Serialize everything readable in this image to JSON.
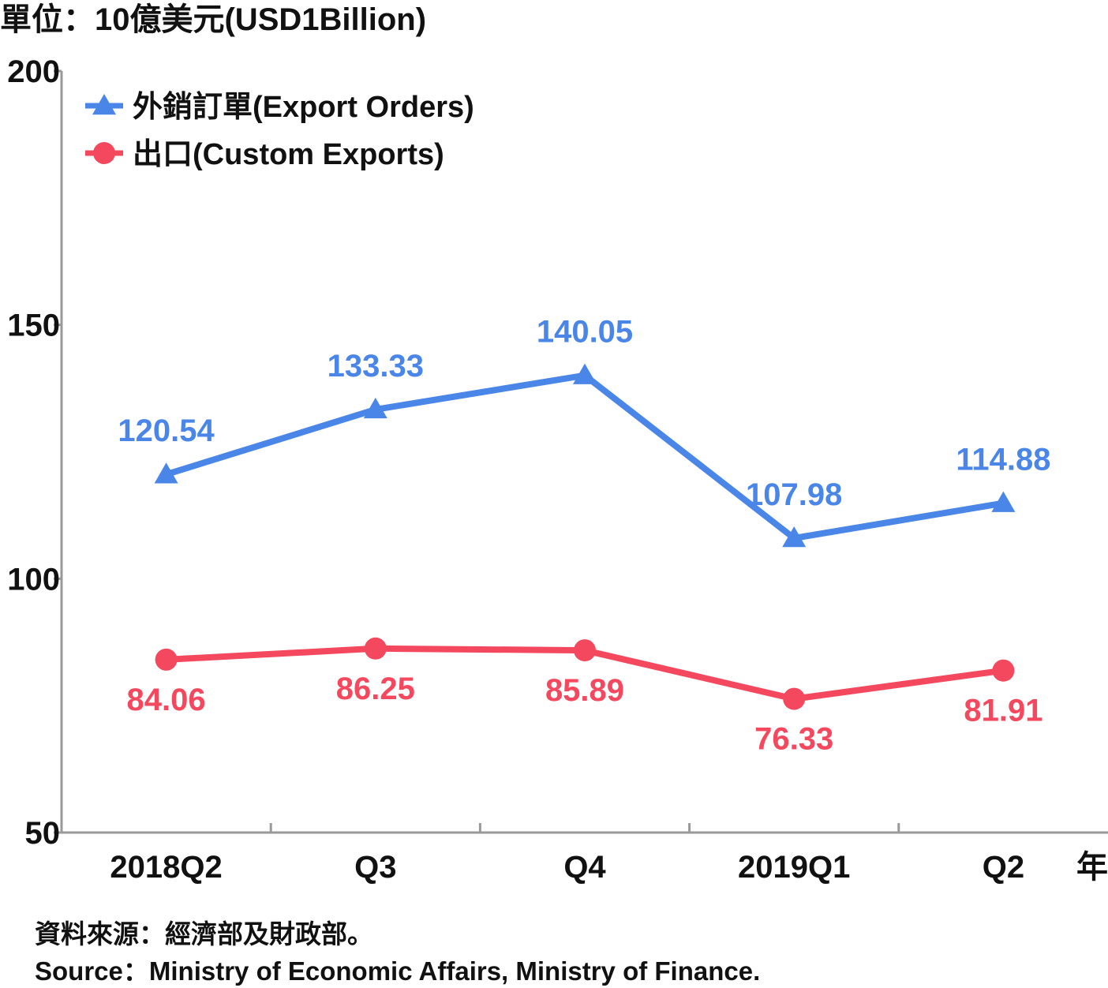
{
  "unit_label": "單位：10億美元(USD1Billion)",
  "year_suffix": "年",
  "source_lines": [
    "資料來源：經濟部及財政部。",
    "Source：Ministry of Economic Affairs, Ministry of Finance."
  ],
  "chart_data": {
    "type": "line",
    "categories": [
      "2018Q2",
      "Q3",
      "Q4",
      "2019Q1",
      "Q2"
    ],
    "ylim": [
      50,
      200
    ],
    "yticks": [
      "50",
      "100",
      "150",
      "200"
    ],
    "grid": false,
    "legend_position": "top-left",
    "series": [
      {
        "name": "外銷訂單(Export Orders)",
        "color": "#4a86e8",
        "marker": "triangle",
        "values": [
          120.54,
          133.33,
          140.05,
          107.98,
          114.88
        ],
        "labels": [
          "120.54",
          "133.33",
          "140.05",
          "107.98",
          "114.88"
        ],
        "label_position": "above"
      },
      {
        "name": "出口(Custom Exports)",
        "color": "#f4485e",
        "marker": "circle",
        "values": [
          84.06,
          86.25,
          85.89,
          76.33,
          81.91
        ],
        "labels": [
          "84.06",
          "86.25",
          "85.89",
          "76.33",
          "81.91"
        ],
        "label_position": "below"
      }
    ]
  }
}
